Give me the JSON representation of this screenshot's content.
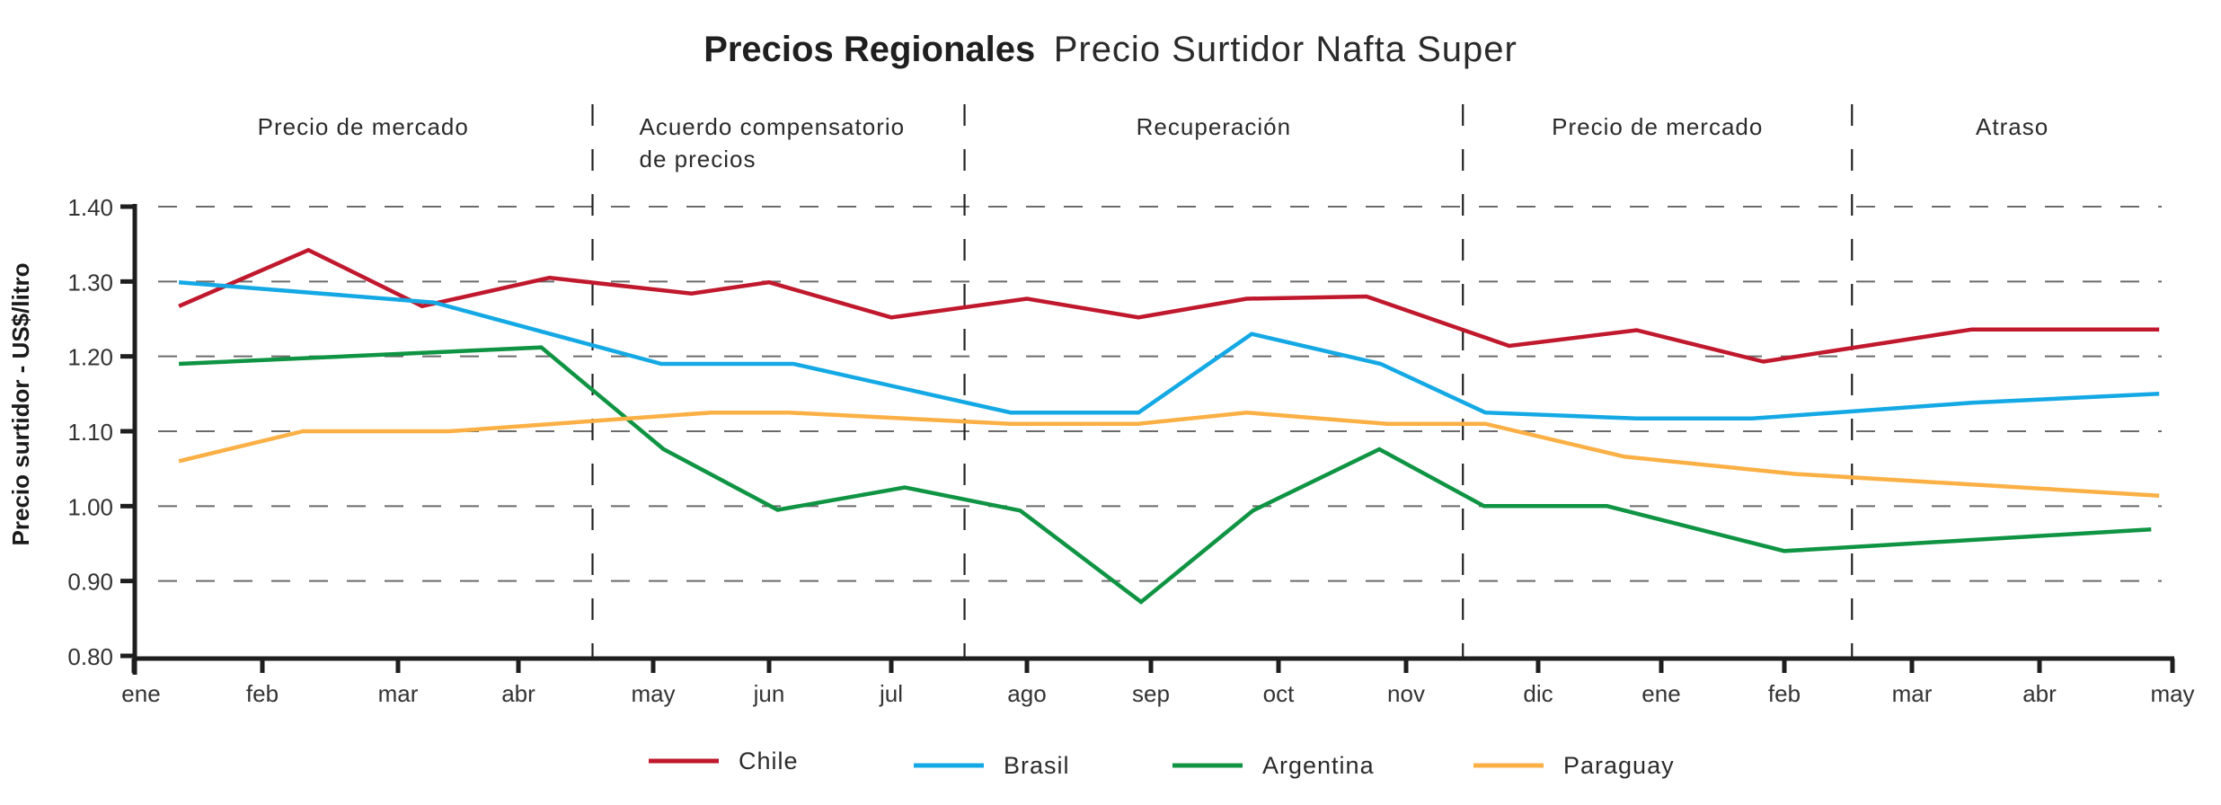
{
  "chart_data": {
    "type": "line",
    "title": "Precios Regionales",
    "subtitle": "Precio Surtidor Nafta Super",
    "xlabel": "",
    "ylabel": "Precio surtidor - US$/litro",
    "ylim": [
      0.8,
      1.4
    ],
    "yticks": [
      "1.40",
      "1.30",
      "1.20",
      "1.10",
      "1.00",
      "0.90",
      "0.80"
    ],
    "ytick_values": [
      1.4,
      1.3,
      1.2,
      1.1,
      1.0,
      0.9,
      0.8
    ],
    "grid": true,
    "legend_position": "bottom",
    "x_categories": [
      "ene",
      "feb",
      "mar",
      "abr",
      "may",
      "jun",
      "jul",
      "ago",
      "sep",
      "oct",
      "nov",
      "dic",
      "ene",
      "feb",
      "mar",
      "abr",
      "may"
    ],
    "x_note": "x values are expressed as month index along the axis (0 = first 'ene', 16 = last 'may')",
    "regions": [
      {
        "label_lines": [
          "Precio de mercado"
        ],
        "start": 0,
        "end": 3.55
      },
      {
        "label_lines": [
          "Acuerdo compensatorio",
          "de precios"
        ],
        "start": 3.55,
        "end": 6.54
      },
      {
        "label_lines": [
          "Recuperación"
        ],
        "start": 6.54,
        "end": 10.43
      },
      {
        "label_lines": [
          "Precio de mercado"
        ],
        "start": 10.43,
        "end": 13.53
      },
      {
        "label_lines": [
          "Atraso"
        ],
        "start": 13.53,
        "end": 16
      }
    ],
    "series": [
      {
        "name": "Chile",
        "color": "#c0182d",
        "x": [
          0.35,
          1.34,
          2.2,
          3.23,
          4.33,
          5.0,
          6.0,
          7.0,
          7.9,
          8.75,
          9.69,
          10.78,
          11.8,
          12.83,
          14.47,
          15.9
        ],
        "values": [
          1.267,
          1.342,
          1.267,
          1.305,
          1.284,
          1.299,
          1.252,
          1.277,
          1.252,
          1.277,
          1.28,
          1.214,
          1.235,
          1.193,
          1.236,
          1.236
        ]
      },
      {
        "name": "Brasil",
        "color": "#14a9e4",
        "x": [
          0.35,
          2.3,
          4.07,
          5.2,
          6.88,
          7.9,
          8.79,
          9.8,
          10.6,
          11.8,
          12.74,
          14.47,
          15.9
        ],
        "values": [
          1.299,
          1.272,
          1.19,
          1.19,
          1.125,
          1.125,
          1.23,
          1.19,
          1.125,
          1.117,
          1.117,
          1.138,
          1.15
        ]
      },
      {
        "name": "Argentina",
        "color": "#0f9443",
        "x": [
          0.35,
          3.17,
          4.09,
          5.07,
          6.1,
          6.95,
          7.92,
          8.8,
          9.79,
          10.59,
          11.56,
          13.0,
          15.84
        ],
        "values": [
          1.19,
          1.212,
          1.076,
          0.995,
          1.025,
          0.994,
          0.872,
          0.994,
          1.076,
          1.0,
          1.0,
          0.94,
          0.969
        ]
      },
      {
        "name": "Paraguay",
        "color": "#fbb045",
        "x": [
          0.35,
          1.3,
          2.43,
          4.5,
          5.16,
          6.88,
          7.9,
          8.75,
          9.85,
          10.6,
          11.7,
          13.08,
          15.9
        ],
        "values": [
          1.06,
          1.1,
          1.1,
          1.125,
          1.125,
          1.11,
          1.11,
          1.125,
          1.11,
          1.11,
          1.066,
          1.043,
          1.014
        ]
      }
    ]
  }
}
